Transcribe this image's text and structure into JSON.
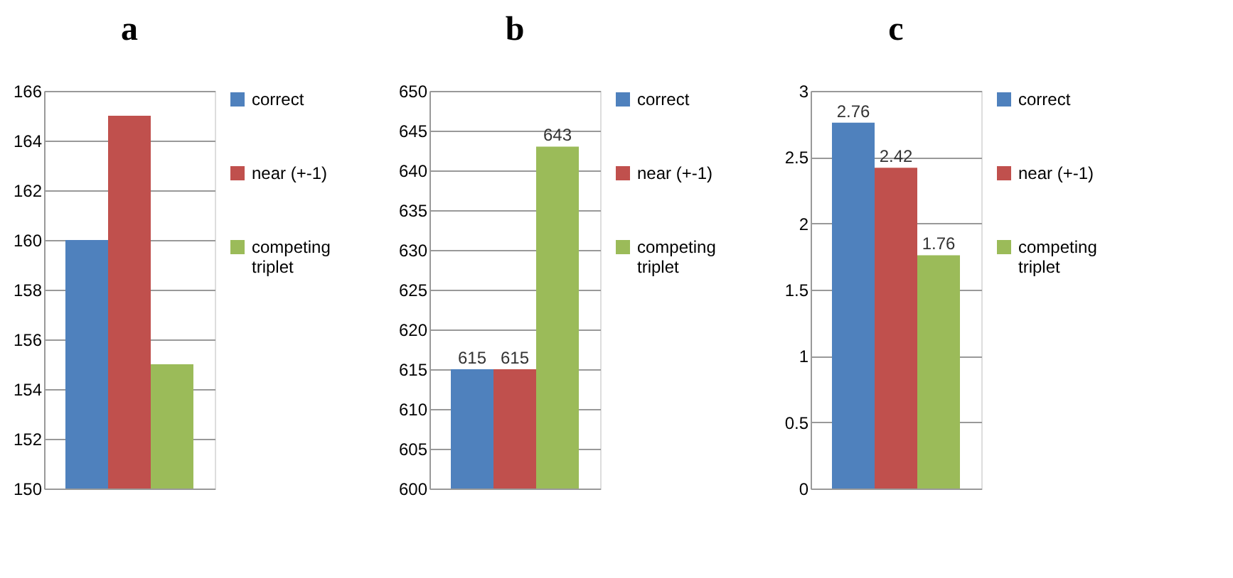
{
  "chart_data": [
    {
      "type": "bar",
      "title": "a",
      "categories": [
        null
      ],
      "series": [
        {
          "name": "correct",
          "color": "#4f81bd",
          "values": [
            160
          ]
        },
        {
          "name": "near (+-1)",
          "color": "#c0504d",
          "values": [
            165
          ]
        },
        {
          "name": "competing triplet",
          "color": "#9bbb59",
          "values": [
            155
          ]
        }
      ],
      "ylim": [
        150,
        166
      ],
      "yticks": [
        150,
        152,
        154,
        156,
        158,
        160,
        162,
        164,
        166
      ],
      "grid": "y",
      "legend": "right",
      "tick_labels": "y"
    },
    {
      "type": "bar",
      "title": "b",
      "categories": [
        null
      ],
      "series": [
        {
          "name": "correct",
          "color": "#4f81bd",
          "values": [
            615
          ]
        },
        {
          "name": "near (+-1)",
          "color": "#c0504d",
          "values": [
            615
          ]
        },
        {
          "name": "competing triplet",
          "color": "#9bbb59",
          "values": [
            643
          ]
        }
      ],
      "ylim": [
        600,
        650
      ],
      "yticks": [
        600,
        605,
        610,
        615,
        620,
        625,
        630,
        635,
        640,
        645,
        650
      ],
      "grid": "y",
      "legend": "right",
      "tick_labels": "y",
      "data_labels": true
    },
    {
      "type": "bar",
      "title": "c",
      "categories": [
        null
      ],
      "series": [
        {
          "name": "correct",
          "color": "#4f81bd",
          "values": [
            2.76
          ]
        },
        {
          "name": "near (+-1)",
          "color": "#c0504d",
          "values": [
            2.42
          ]
        },
        {
          "name": "competing triplet",
          "color": "#9bbb59",
          "values": [
            1.76
          ]
        }
      ],
      "ylim": [
        0,
        3
      ],
      "yticks": [
        0,
        0.5,
        1,
        1.5,
        2,
        2.5,
        3
      ],
      "grid": "y",
      "legend": "right",
      "tick_labels": "y",
      "data_labels": true
    }
  ]
}
